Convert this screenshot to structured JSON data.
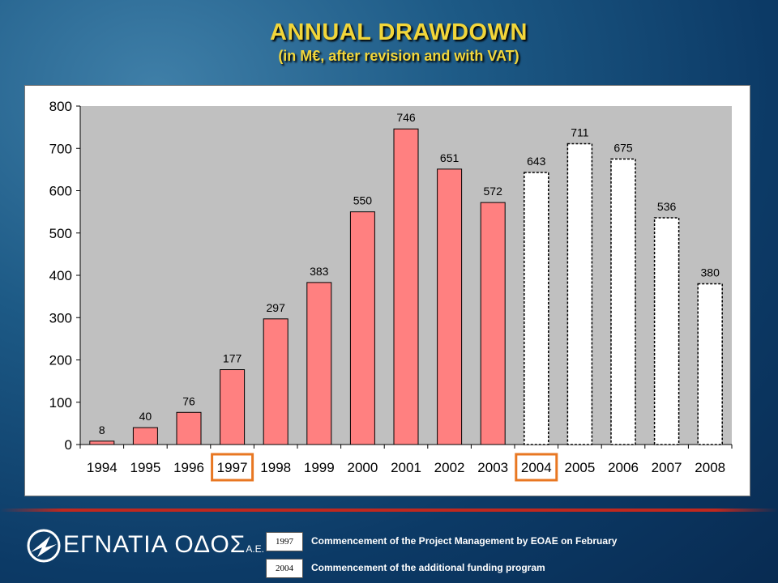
{
  "header": {
    "title": "ANNUAL  DRAWDOWN",
    "subtitle": "(in M€, after revision and with VAT)"
  },
  "chart_data": {
    "type": "bar",
    "categories": [
      "1994",
      "1995",
      "1996",
      "1997",
      "1998",
      "1999",
      "2000",
      "2001",
      "2002",
      "2003",
      "2004",
      "2005",
      "2006",
      "2007",
      "2008"
    ],
    "values": [
      8,
      40,
      76,
      177,
      297,
      383,
      550,
      746,
      651,
      572,
      643,
      711,
      675,
      536,
      380
    ],
    "actual_count": 10,
    "forecast_from": "2004",
    "highlighted_categories": [
      "1997",
      "2004"
    ],
    "ylim": [
      0,
      800
    ],
    "yticks": [
      0,
      100,
      200,
      300,
      400,
      500,
      600,
      700,
      800
    ],
    "grid": false,
    "title": "",
    "xlabel": "",
    "ylabel": "",
    "colors": {
      "actual_fill": "#ff8080",
      "forecast_fill": "#ffffff",
      "plot_background": "#c0c0c0",
      "highlight": "#e87722"
    }
  },
  "footer": {
    "logo_text": "ΕΓΝΑΤΙΑ ΟΔΟΣ",
    "logo_suffix": "Α.Ε.",
    "legend": [
      {
        "tag": "1997",
        "text": "Commencement of the Project Management by EOAE on February"
      },
      {
        "tag": "2004",
        "text": "Commencement of the additional funding program"
      }
    ]
  },
  "colors": {
    "title": "#f2d63a",
    "divider": "#c0281e",
    "background": "#0c3a66"
  }
}
